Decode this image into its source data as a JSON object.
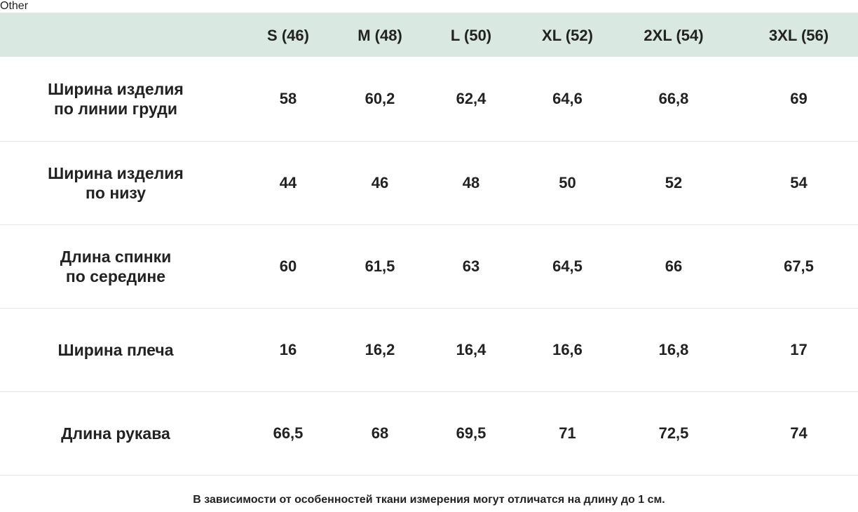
{
  "table": {
    "header_label": "",
    "sizes": [
      "S (46)",
      "M (48)",
      "L (50)",
      "XL (52)",
      "2XL (54)",
      "3XL (56)"
    ],
    "rows": [
      {
        "label": "Ширина изделия\nпо линии груди",
        "values": [
          "58",
          "60,2",
          "62,4",
          "64,6",
          "66,8",
          "69"
        ]
      },
      {
        "label": "Ширина изделия\nпо низу",
        "values": [
          "44",
          "46",
          "48",
          "50",
          "52",
          "54"
        ]
      },
      {
        "label": "Длина спинки\nпо середине",
        "values": [
          "60",
          "61,5",
          "63",
          "64,5",
          "66",
          "67,5"
        ]
      },
      {
        "label": "Ширина плеча",
        "values": [
          "16",
          "16,2",
          "16,4",
          "16,6",
          "16,8",
          "17"
        ]
      },
      {
        "label": "Длина рукава",
        "values": [
          "66,5",
          "68",
          "69,5",
          "71",
          "72,5",
          "74"
        ]
      }
    ]
  },
  "footnote": "В зависимости от особенностей ткани измерения могут отличатся на длину до 1 см.",
  "colors": {
    "header_background": "#dae8e2",
    "text": "#222222",
    "row_divider": "#e6e6e6"
  }
}
